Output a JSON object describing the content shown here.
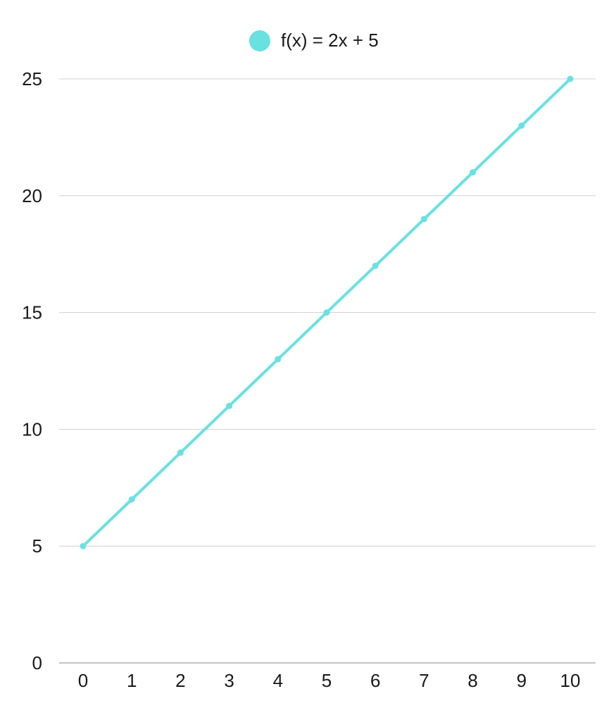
{
  "colors": {
    "series": "#69e1e1",
    "grid": "#d0d0d0",
    "axis": "#8a8a8a",
    "text": "#1a1a1a"
  },
  "chart_data": {
    "type": "line",
    "title": "",
    "xlabel": "",
    "ylabel": "",
    "x": [
      0,
      1,
      2,
      3,
      4,
      5,
      6,
      7,
      8,
      9,
      10
    ],
    "series": [
      {
        "name": "f(x) = 2x + 5",
        "values": [
          5,
          7,
          9,
          11,
          13,
          15,
          17,
          19,
          21,
          23,
          25
        ]
      }
    ],
    "xlim": [
      0,
      10
    ],
    "ylim": [
      0,
      25
    ],
    "y_ticks": [
      0,
      5,
      10,
      15,
      20,
      25
    ],
    "x_ticks": [
      0,
      1,
      2,
      3,
      4,
      5,
      6,
      7,
      8,
      9,
      10
    ],
    "grid": "horizontal",
    "legend_position": "top-center"
  }
}
